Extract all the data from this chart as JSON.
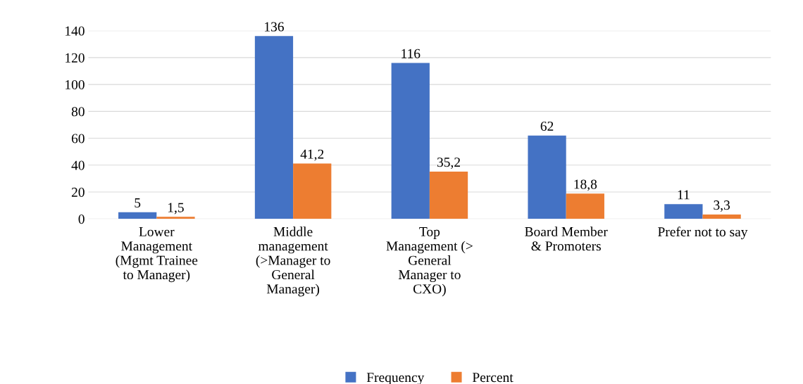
{
  "chart_data": {
    "type": "bar",
    "categories": [
      "Lower\nManagement\n(Mgmt Trainee\nto Manager)",
      "Middle\nmanagement\n(>Manager to\nGeneral\nManager)",
      "Top\nManagement (>\nGeneral\nManager to\nCXO)",
      "Board Member\n& Promoters",
      "Prefer not to say"
    ],
    "series": [
      {
        "name": "Frequency",
        "color": "#4472c4",
        "values": [
          5,
          136,
          116,
          62,
          11
        ],
        "value_labels": [
          "5",
          "136",
          "116",
          "62",
          "11"
        ]
      },
      {
        "name": "Percent",
        "color": "#ed7d31",
        "values": [
          1.5,
          41.2,
          35.2,
          18.8,
          3.3
        ],
        "value_labels": [
          "1,5",
          "41,2",
          "35,2",
          "18,8",
          "3,3"
        ]
      }
    ],
    "ylim": [
      0,
      140
    ],
    "yticks": [
      0,
      20,
      40,
      60,
      80,
      100,
      120,
      140
    ],
    "grid": "y",
    "legend": "bottom"
  }
}
